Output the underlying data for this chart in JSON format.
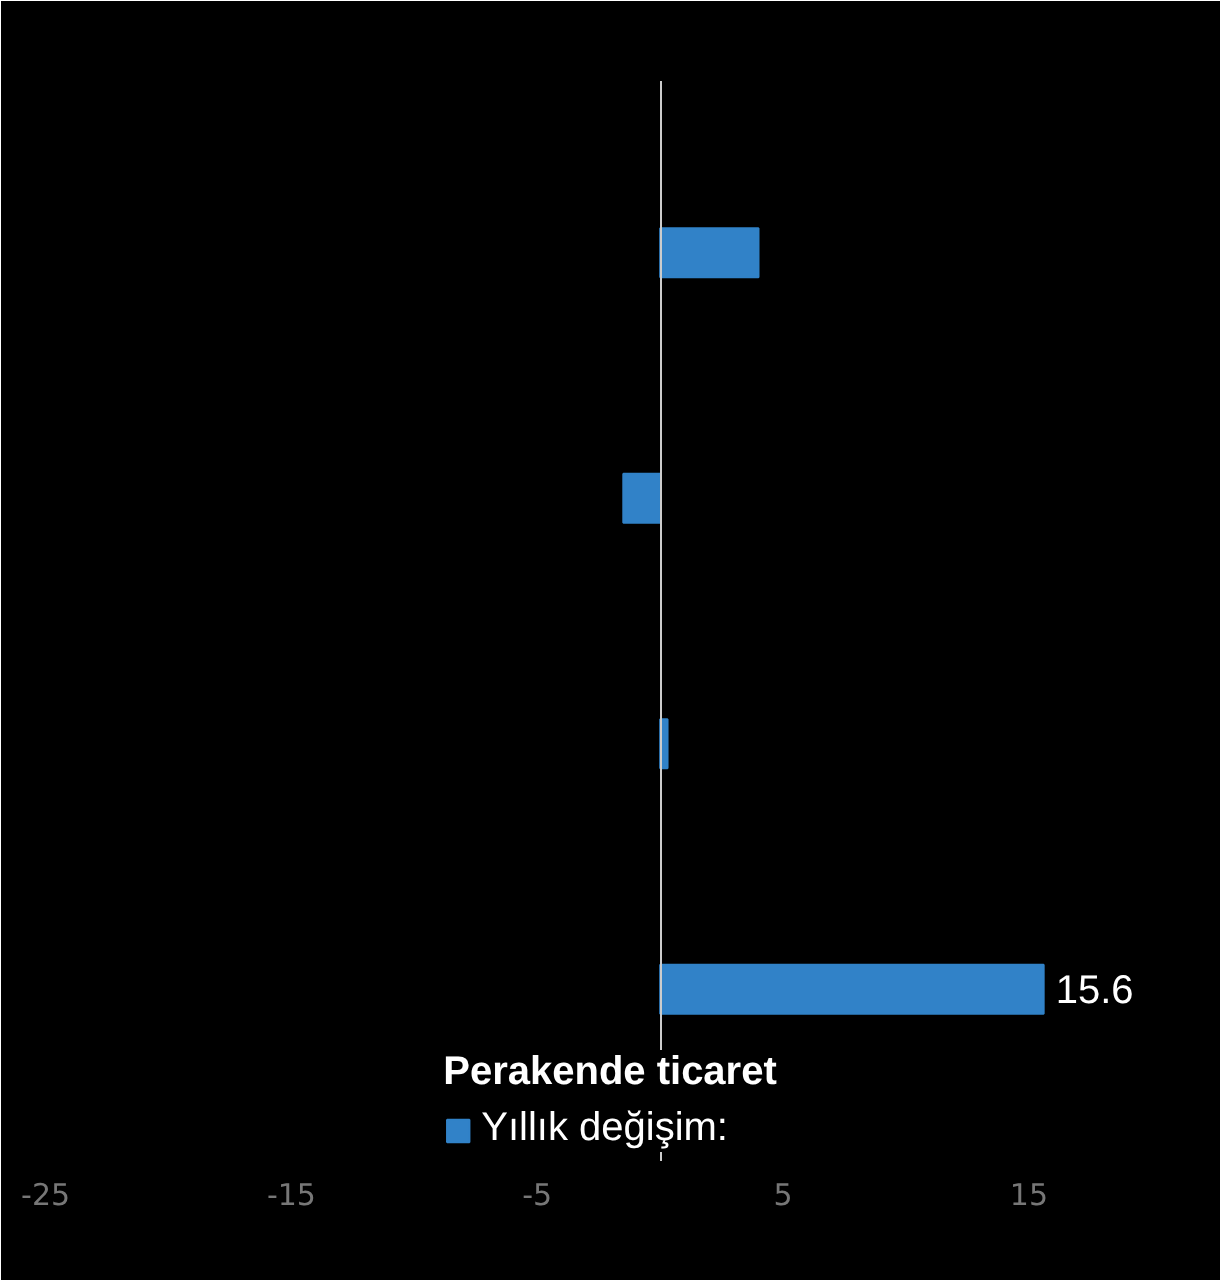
{
  "chart_data": {
    "type": "bar",
    "orientation": "horizontal",
    "categories": [
      null,
      null,
      null,
      "Perakende ticaret"
    ],
    "series": [
      {
        "name": "Yıllık değişim:",
        "color": "#3182c8",
        "values": [
          4.0,
          -1.5,
          0.3,
          15.6
        ],
        "value_labels": [
          null,
          null,
          null,
          "15.6"
        ]
      }
    ],
    "xlim": [
      -26,
      22
    ],
    "xticks": [
      -25,
      -15,
      -5,
      5,
      15
    ],
    "tick_labels": "x",
    "grid": false,
    "legend": "bottom"
  }
}
